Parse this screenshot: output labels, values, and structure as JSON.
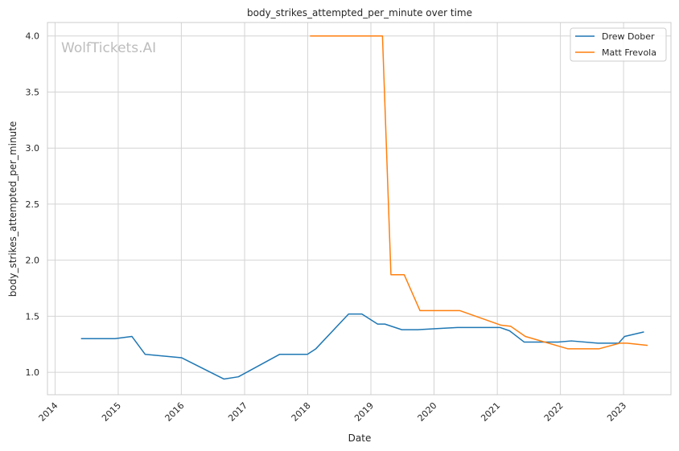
{
  "chart_data": {
    "type": "line",
    "title": "body_strikes_attempted_per_minute over time",
    "xlabel": "Date",
    "ylabel": "body_strikes_attempted_per_minute",
    "watermark": "WolfTickets.AI",
    "x_ticks": [
      "2014",
      "2015",
      "2016",
      "2017",
      "2018",
      "2019",
      "2020",
      "2021",
      "2022",
      "2023"
    ],
    "y_ticks": [
      "1.0",
      "1.5",
      "2.0",
      "2.5",
      "3.0",
      "3.5",
      "4.0"
    ],
    "xlim": [
      "2013-11-18",
      "2023-10-02"
    ],
    "ylim": [
      0.8,
      4.12
    ],
    "grid": true,
    "legend_position": "top-right",
    "series": [
      {
        "name": "Drew Dober",
        "color": "#1f77b4",
        "points": [
          [
            "2014-05-31",
            1.3
          ],
          [
            "2014-12-13",
            1.3
          ],
          [
            "2015-03-21",
            1.32
          ],
          [
            "2015-06-06",
            1.16
          ],
          [
            "2016-01-02",
            1.13
          ],
          [
            "2016-09-03",
            0.94
          ],
          [
            "2016-11-26",
            0.96
          ],
          [
            "2017-07-22",
            1.16
          ],
          [
            "2017-12-30",
            1.16
          ],
          [
            "2018-02-17",
            1.21
          ],
          [
            "2018-08-25",
            1.52
          ],
          [
            "2018-11-10",
            1.52
          ],
          [
            "2019-02-09",
            1.43
          ],
          [
            "2019-03-23",
            1.43
          ],
          [
            "2019-06-29",
            1.38
          ],
          [
            "2019-09-28",
            1.38
          ],
          [
            "2020-01-18",
            1.39
          ],
          [
            "2020-05-16",
            1.4
          ],
          [
            "2021-01-16",
            1.4
          ],
          [
            "2021-03-13",
            1.37
          ],
          [
            "2021-06-05",
            1.27
          ],
          [
            "2021-10-16",
            1.27
          ],
          [
            "2021-12-18",
            1.27
          ],
          [
            "2022-03-05",
            1.28
          ],
          [
            "2022-08-06",
            1.26
          ],
          [
            "2022-12-03",
            1.26
          ],
          [
            "2023-01-07",
            1.32
          ],
          [
            "2023-04-29",
            1.36
          ]
        ]
      },
      {
        "name": "Matt Frevola",
        "color": "#ff7f0e",
        "points": [
          [
            "2018-01-14",
            4.0
          ],
          [
            "2019-03-09",
            4.0
          ],
          [
            "2019-04-27",
            1.87
          ],
          [
            "2019-07-13",
            1.87
          ],
          [
            "2019-10-12",
            1.55
          ],
          [
            "2020-05-30",
            1.55
          ],
          [
            "2021-01-23",
            1.42
          ],
          [
            "2021-03-20",
            1.41
          ],
          [
            "2021-06-12",
            1.32
          ],
          [
            "2022-02-12",
            1.21
          ],
          [
            "2022-08-13",
            1.21
          ],
          [
            "2022-12-10",
            1.26
          ],
          [
            "2023-01-21",
            1.26
          ],
          [
            "2023-05-20",
            1.24
          ]
        ]
      }
    ]
  }
}
